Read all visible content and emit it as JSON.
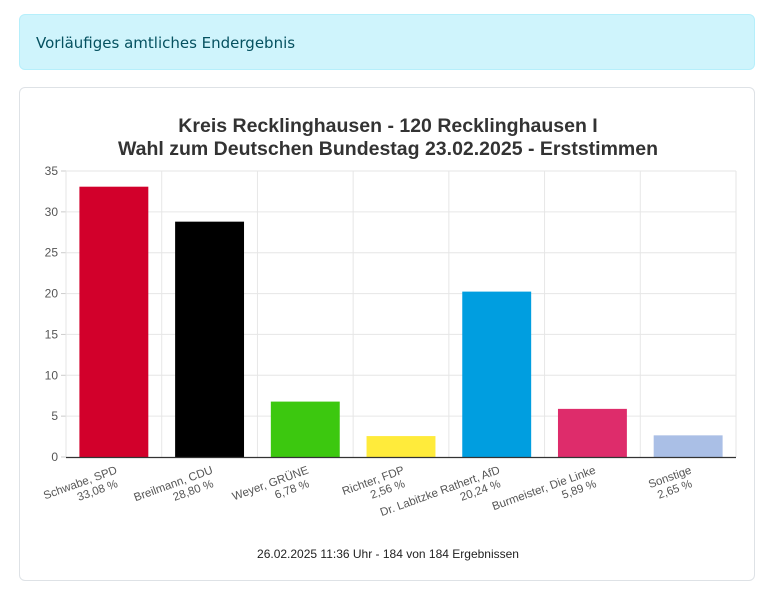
{
  "banner": {
    "text": "Vorläufiges amtliches Endergebnis"
  },
  "chart_data": {
    "type": "bar",
    "title": [
      "Kreis Recklinghausen - 120 Recklinghausen I",
      "Wahl zum Deutschen Bundestag 23.02.2025  - Erststimmen"
    ],
    "ylim": [
      0,
      35
    ],
    "yticks": [
      0,
      5,
      10,
      15,
      20,
      25,
      30,
      35
    ],
    "grid": true,
    "categories": [
      {
        "name": "Schwabe, SPD",
        "pct": "33,08 %",
        "value": 33.08,
        "color": "#d2002b"
      },
      {
        "name": "Breilmann, CDU",
        "pct": "28,80 %",
        "value": 28.8,
        "color": "#000000"
      },
      {
        "name": "Weyer, GRÜNE",
        "pct": "6,78 %",
        "value": 6.78,
        "color": "#3cc80f"
      },
      {
        "name": "Richter, FDP",
        "pct": "2,56 %",
        "value": 2.56,
        "color": "#ffeb3b"
      },
      {
        "name": "Dr. Labitzke Rathert, AfD",
        "pct": "20,24 %",
        "value": 20.24,
        "color": "#009ee0"
      },
      {
        "name": "Burmeister, Die Linke",
        "pct": "5,89 %",
        "value": 5.89,
        "color": "#de2c6b"
      },
      {
        "name": "Sonstige",
        "pct": "2,65 %",
        "value": 2.65,
        "color": "#aabfe6"
      }
    ],
    "footer": "26.02.2025 11:36 Uhr - 184 von 184 Ergebnissen"
  }
}
